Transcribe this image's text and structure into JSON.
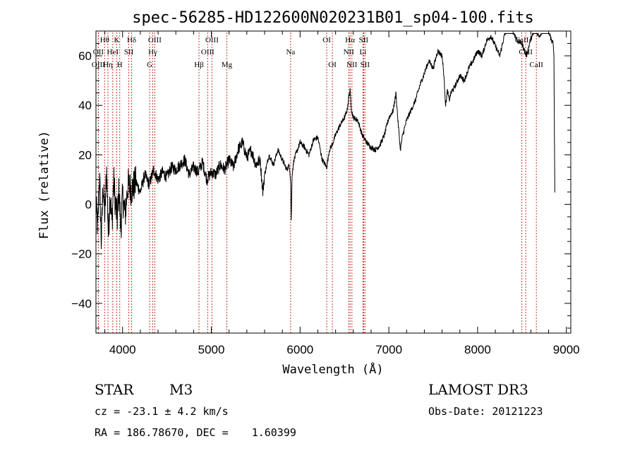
{
  "chart_data": {
    "type": "line",
    "title": "spec-56285-HD122600N020231B01_sp04-100.fits",
    "xlabel": "Wavelength (Å)",
    "ylabel": "Flux (relative)",
    "xlim": [
      3700,
      9050
    ],
    "ylim": [
      -52,
      70
    ],
    "x_ticks": [
      4000,
      5000,
      6000,
      7000,
      8000,
      9000
    ],
    "y_ticks": [
      -40,
      -20,
      0,
      20,
      40,
      60
    ],
    "spectrum": {
      "x": [
        3700,
        3720,
        3740,
        3760,
        3780,
        3800,
        3820,
        3840,
        3860,
        3880,
        3900,
        3920,
        3940,
        3960,
        3980,
        4000,
        4030,
        4060,
        4100,
        4150,
        4200,
        4250,
        4300,
        4350,
        4400,
        4450,
        4500,
        4550,
        4600,
        4650,
        4700,
        4750,
        4800,
        4850,
        4900,
        4950,
        5000,
        5050,
        5100,
        5150,
        5200,
        5250,
        5300,
        5350,
        5400,
        5450,
        5500,
        5550,
        5580,
        5600,
        5650,
        5700,
        5750,
        5800,
        5850,
        5880,
        5895,
        5900,
        5910,
        5930,
        5950,
        6000,
        6050,
        6100,
        6150,
        6200,
        6250,
        6300,
        6330,
        6360,
        6400,
        6450,
        6500,
        6530,
        6550,
        6563,
        6580,
        6600,
        6650,
        6700,
        6750,
        6800,
        6850,
        6900,
        6950,
        7000,
        7050,
        7080,
        7100,
        7130,
        7150,
        7200,
        7250,
        7300,
        7350,
        7400,
        7450,
        7500,
        7550,
        7600,
        7620,
        7640,
        7660,
        7680,
        7700,
        7750,
        7800,
        7850,
        7900,
        7950,
        8000,
        8050,
        8100,
        8150,
        8200,
        8250,
        8300,
        8350,
        8400,
        8450,
        8500,
        8550,
        8600,
        8650,
        8700,
        8750,
        8800,
        8830,
        8850,
        8860,
        8870
      ],
      "y": [
        0,
        -10,
        12,
        -15,
        8,
        -5,
        14,
        -12,
        5,
        -8,
        10,
        0,
        -6,
        6,
        -10,
        3,
        -4,
        8,
        6,
        9,
        5,
        12,
        8,
        14,
        10,
        13,
        11,
        15,
        14,
        16,
        18,
        12,
        15,
        13,
        17,
        10,
        13,
        12,
        16,
        14,
        18,
        15,
        22,
        25,
        19,
        22,
        16,
        18,
        5,
        12,
        20,
        16,
        22,
        18,
        14,
        16,
        8,
        -7,
        12,
        18,
        20,
        25,
        23,
        20,
        26,
        27,
        18,
        15,
        22,
        24,
        28,
        32,
        35,
        38,
        44,
        46,
        38,
        35,
        34,
        28,
        25,
        23,
        22,
        24,
        28,
        35,
        38,
        45,
        35,
        22,
        27,
        34,
        38,
        42,
        48,
        53,
        58,
        55,
        62,
        60,
        52,
        40,
        46,
        42,
        45,
        48,
        52,
        50,
        55,
        58,
        62,
        60,
        66,
        68,
        64,
        60,
        68,
        72,
        70,
        66,
        65,
        60,
        67,
        70,
        68,
        72,
        71,
        66,
        65,
        60,
        5
      ]
    },
    "lines": [
      {
        "label": "Hθ",
        "x": 3798,
        "row": 0
      },
      {
        "label": "K",
        "x": 3934,
        "row": 0
      },
      {
        "label": "Hδ",
        "x": 4102,
        "row": 0
      },
      {
        "label": "OIII",
        "x": 4363,
        "row": 0
      },
      {
        "label": "OIII",
        "x": 5007,
        "row": 0
      },
      {
        "label": "OI",
        "x": 6300,
        "row": 0
      },
      {
        "label": "Hα",
        "x": 6563,
        "row": 0
      },
      {
        "label": "SII",
        "x": 6716,
        "row": 0
      },
      {
        "label": "CaII",
        "x": 8498,
        "row": 0
      },
      {
        "label": "OII",
        "x": 3727,
        "row": 1
      },
      {
        "label": "HeI",
        "x": 3889,
        "row": 1
      },
      {
        "label": "SII",
        "x": 4070,
        "row": 1
      },
      {
        "label": "Hγ",
        "x": 4340,
        "row": 1
      },
      {
        "label": "OIII",
        "x": 4959,
        "row": 1
      },
      {
        "label": "NII",
        "x": 6548,
        "row": 1
      },
      {
        "label": "Li",
        "x": 6708,
        "row": 1
      },
      {
        "label": "CaII",
        "x": 8542,
        "row": 1
      },
      {
        "label": "OIII",
        "x": 3727,
        "row": 2
      },
      {
        "label": "Hη",
        "x": 3835,
        "row": 2
      },
      {
        "label": "H",
        "x": 3968,
        "row": 2
      },
      {
        "label": "G",
        "x": 4305,
        "row": 2
      },
      {
        "label": "Hβ",
        "x": 4861,
        "row": 2
      },
      {
        "label": "Mg",
        "x": 5175,
        "row": 2
      },
      {
        "label": "Na",
        "x": 5893,
        "row": 1
      },
      {
        "label": "OI",
        "x": 6364,
        "row": 2
      },
      {
        "label": "NII",
        "x": 6584,
        "row": 2
      },
      {
        "label": "SII",
        "x": 6731,
        "row": 2
      },
      {
        "label": "CaII",
        "x": 8662,
        "row": 2
      }
    ]
  },
  "info": {
    "object_class": "STAR",
    "subclass": "M3",
    "survey": "LAMOST DR3",
    "cz_prefix": "cz = ",
    "cz_value": "-23.1",
    "cz_sep": " ± ",
    "cz_err": "4.2",
    "cz_unit": " km/s",
    "obs_date_label": "Obs-Date: ",
    "obs_date": "20121223",
    "ra_label": "RA = ",
    "ra": "186.78670",
    "dec_label": ", DEC = ",
    "dec": "1.60399"
  },
  "colors": {
    "spectrum": "#000000",
    "line_marker": "#c0392b",
    "axes": "#000000"
  }
}
